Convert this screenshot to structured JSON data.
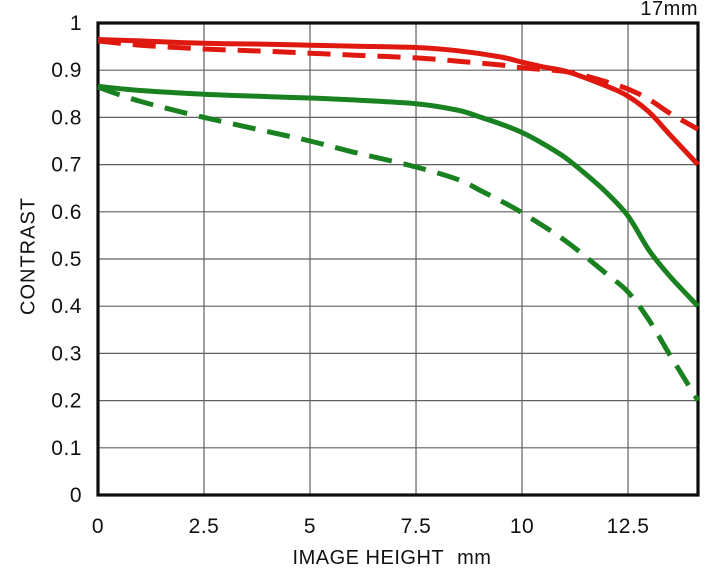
{
  "chart_data": {
    "type": "line",
    "title": "17mm",
    "xlabel": "IMAGE HEIGHT",
    "xunit": "mm",
    "ylabel": "CONTRAST",
    "xlim": [
      0,
      14.15
    ],
    "ylim": [
      0,
      1
    ],
    "x_ticks": [
      0,
      2.5,
      5,
      7.5,
      10,
      12.5
    ],
    "x_tick_labels": [
      "0",
      "2.5",
      "5",
      "7.5",
      "10",
      "12.5"
    ],
    "y_ticks": [
      0,
      0.1,
      0.2,
      0.3,
      0.4,
      0.5,
      0.6,
      0.7,
      0.8,
      0.9,
      1
    ],
    "y_tick_labels": [
      "0",
      "0.1",
      "0.2",
      "0.3",
      "0.4",
      "0.5",
      "0.6",
      "0.7",
      "0.8",
      "0.9",
      "1"
    ],
    "grid": true,
    "legend": "none",
    "colors": {
      "red": "#e01910",
      "green": "#1a8121",
      "grid": "#606060",
      "axis": "#0d0d0d",
      "background": "#ffffff",
      "text": "#111111"
    },
    "series": [
      {
        "name": "green-dashed",
        "color": "green",
        "style": "dashed",
        "x": [
          0,
          1,
          2.5,
          4,
          5,
          6,
          7.5,
          8.5,
          9,
          9.5,
          10,
          11,
          12,
          12.5,
          13,
          13.5,
          14.15
        ],
        "y": [
          0.864,
          0.834,
          0.8,
          0.77,
          0.75,
          0.727,
          0.695,
          0.668,
          0.646,
          0.623,
          0.598,
          0.54,
          0.468,
          0.43,
          0.37,
          0.295,
          0.2
        ]
      },
      {
        "name": "green-solid",
        "color": "green",
        "style": "solid",
        "x": [
          0,
          1,
          2.5,
          4,
          5,
          6,
          7.5,
          8.5,
          9,
          9.5,
          10,
          10.5,
          11,
          11.5,
          12,
          12.5,
          13,
          13.5,
          14.15
        ],
        "y": [
          0.866,
          0.857,
          0.849,
          0.844,
          0.841,
          0.837,
          0.829,
          0.815,
          0.801,
          0.786,
          0.768,
          0.744,
          0.716,
          0.68,
          0.64,
          0.591,
          0.518,
          0.462,
          0.4
        ]
      },
      {
        "name": "red-dashed",
        "color": "red",
        "style": "dashed",
        "x": [
          0,
          1,
          2.5,
          4,
          5,
          6,
          7.5,
          8.5,
          9.5,
          10,
          11.1,
          12,
          12.5,
          13,
          13.5,
          14.15
        ],
        "y": [
          0.962,
          0.953,
          0.945,
          0.94,
          0.936,
          0.932,
          0.926,
          0.919,
          0.911,
          0.905,
          0.896,
          0.875,
          0.86,
          0.838,
          0.808,
          0.775
        ]
      },
      {
        "name": "red-solid",
        "color": "red",
        "style": "solid",
        "x": [
          0,
          1,
          2.5,
          4,
          5,
          6,
          7.5,
          8.5,
          9.5,
          10,
          10.5,
          11.1,
          12,
          12.5,
          13,
          13.5,
          14.15
        ],
        "y": [
          0.965,
          0.962,
          0.957,
          0.955,
          0.953,
          0.951,
          0.948,
          0.941,
          0.928,
          0.917,
          0.907,
          0.896,
          0.866,
          0.845,
          0.811,
          0.762,
          0.7
        ]
      }
    ]
  }
}
